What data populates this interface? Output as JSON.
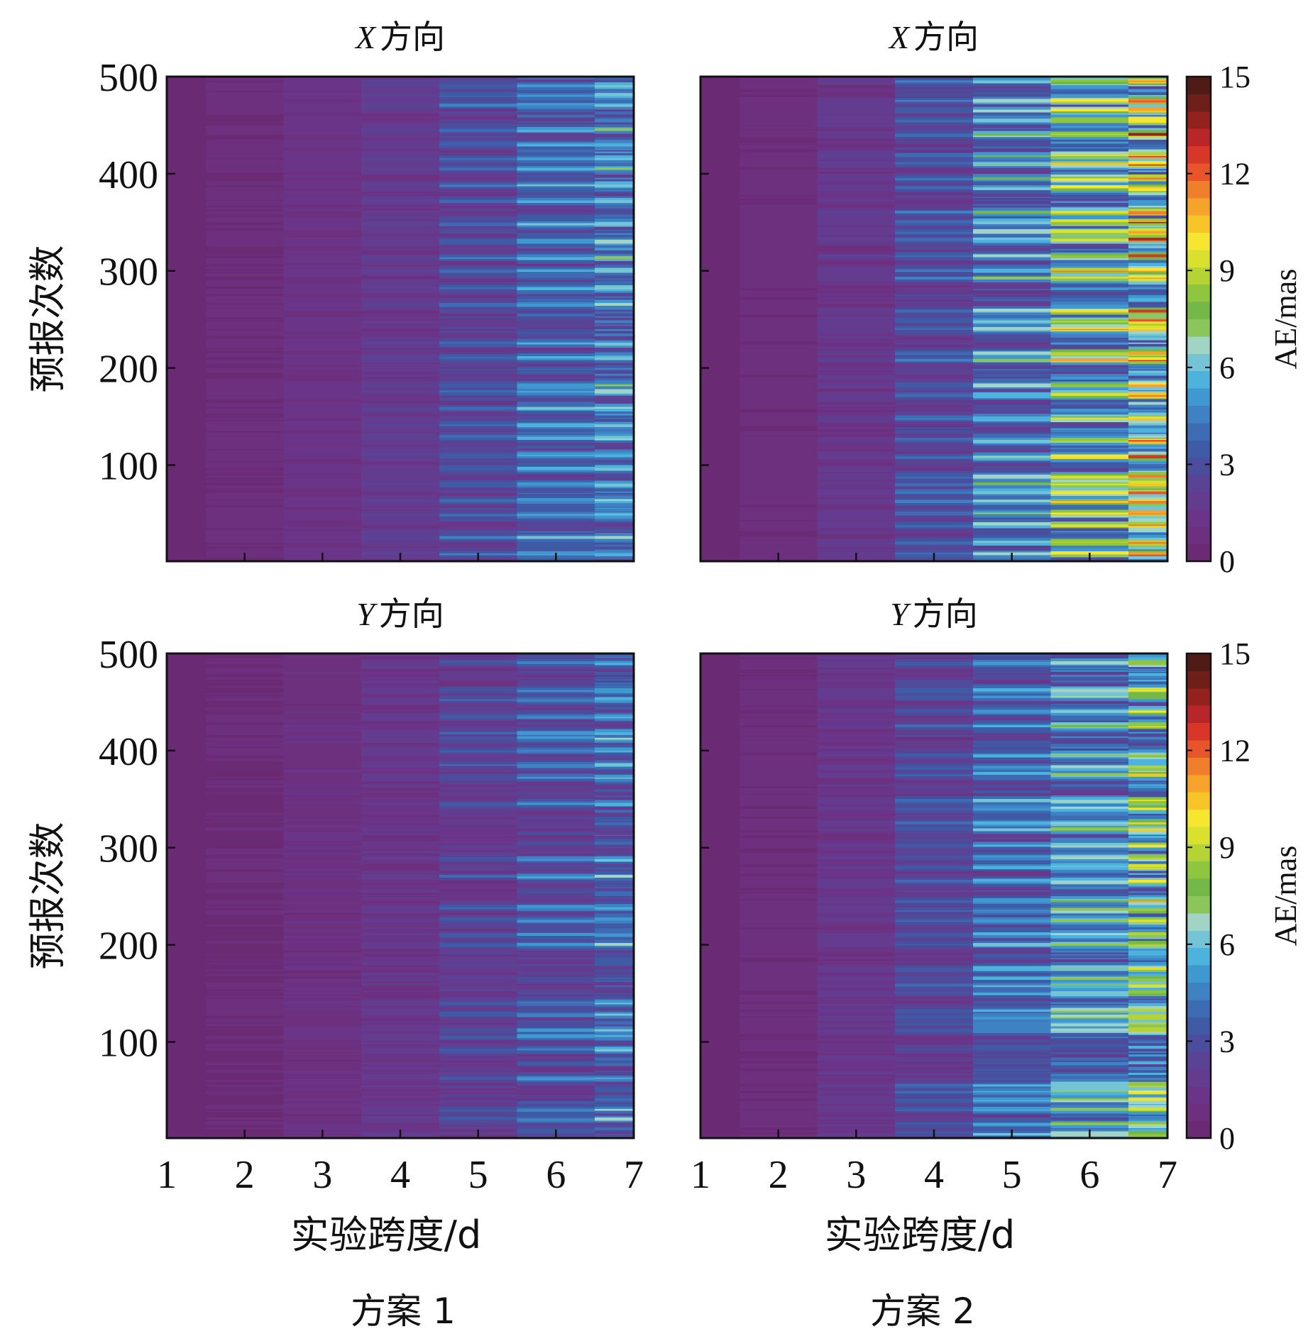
{
  "chart_data": {
    "type": "heatmap",
    "figure_labels": {
      "scheme1": "方案 1",
      "scheme2": "方案 2"
    },
    "colorbar": {
      "label": "AE/mas",
      "range": [
        0,
        15
      ],
      "ticks": [
        "0",
        "3",
        "6",
        "9",
        "12",
        "15"
      ],
      "colors": [
        "#6a2a74",
        "#6c307e",
        "#6a3488",
        "#633b8f",
        "#5a4395",
        "#4c4e9d",
        "#3f5ba6",
        "#3d6cb5",
        "#3f82c4",
        "#3f98d0",
        "#4db2dc",
        "#74c4d6",
        "#a2d4c6",
        "#8cc65a",
        "#74b84a",
        "#8ec63f",
        "#b5d334",
        "#d9e02e",
        "#f6e630",
        "#f7c528",
        "#f5a32a",
        "#ef7f2a",
        "#e8552a",
        "#d9362a",
        "#b8262a",
        "#93221f",
        "#6e1f1a",
        "#4e1b16"
      ]
    },
    "panels": [
      {
        "id": "x-scheme1",
        "title_var": "X",
        "title_text": "方向",
        "xlabel": "",
        "ylabel": "预报次数",
        "x": [
          "1",
          "2",
          "3",
          "4",
          "5",
          "6",
          "7"
        ],
        "xlim": [
          1,
          7
        ],
        "ylim": [
          1,
          500
        ],
        "yticks": [
          "100",
          "200",
          "300",
          "400",
          "500"
        ],
        "show_yticklabels": true,
        "show_xticklabels": false,
        "base_level": [
          0.2,
          0.6,
          1.1,
          1.5,
          2.1,
          2.8,
          3.4
        ],
        "streak_max": [
          0,
          0.5,
          1.5,
          2.5,
          4.5,
          6.0,
          7.0
        ],
        "streaks": [
          8,
          25,
          48,
          63,
          80,
          96,
          110,
          128,
          141,
          158,
          175,
          182,
          210,
          225,
          265,
          282,
          300,
          313,
          330,
          348,
          372,
          388,
          405,
          415,
          430,
          445,
          470,
          480,
          490
        ]
      },
      {
        "id": "x-scheme2",
        "title_var": "X",
        "title_text": "方向",
        "xlabel": "",
        "ylabel": "",
        "x": [
          "1",
          "2",
          "3",
          "4",
          "5",
          "6",
          "7"
        ],
        "xlim": [
          1,
          7
        ],
        "ylim": [
          1,
          500
        ],
        "yticks": [
          "100",
          "200",
          "300",
          "400",
          "500"
        ],
        "show_yticklabels": false,
        "show_xticklabels": false,
        "base_level": [
          0.2,
          0.7,
          1.3,
          2.0,
          2.9,
          3.8,
          4.8
        ],
        "streak_max": [
          0,
          0.6,
          2.2,
          4.5,
          7.5,
          11.0,
          13.0
        ],
        "streaks": [
          8,
          20,
          38,
          50,
          62,
          72,
          80,
          88,
          108,
          125,
          148,
          172,
          182,
          208,
          215,
          240,
          248,
          258,
          292,
          300,
          315,
          332,
          340,
          350,
          360,
          385,
          395,
          410,
          418,
          440,
          455,
          465,
          475,
          495
        ]
      },
      {
        "id": "y-scheme1",
        "title_var": "Y",
        "title_text": "方向",
        "xlabel": "实验跨度/d",
        "ylabel": "预报次数",
        "x": [
          "1",
          "2",
          "3",
          "4",
          "5",
          "6",
          "7"
        ],
        "xlim": [
          1,
          7
        ],
        "ylim": [
          1,
          500
        ],
        "yticks": [
          "100",
          "200",
          "300",
          "400",
          "500"
        ],
        "show_yticklabels": true,
        "show_xticklabels": true,
        "base_level": [
          0.2,
          0.5,
          0.9,
          1.3,
          1.7,
          2.3,
          2.8
        ],
        "streak_max": [
          0,
          0.3,
          1.0,
          2.0,
          4.0,
          5.5,
          6.5
        ],
        "streaks": [
          20,
          30,
          62,
          92,
          105,
          112,
          128,
          140,
          200,
          210,
          225,
          238,
          270,
          288,
          345,
          372,
          385,
          400,
          412,
          418,
          435,
          452,
          462,
          490
        ]
      },
      {
        "id": "y-scheme2",
        "title_var": "Y",
        "title_text": "方向",
        "xlabel": "实验跨度/d",
        "ylabel": "",
        "x": [
          "1",
          "2",
          "3",
          "4",
          "5",
          "6",
          "7"
        ],
        "xlim": [
          1,
          7
        ],
        "ylim": [
          1,
          500
        ],
        "yticks": [
          "100",
          "200",
          "300",
          "400",
          "500"
        ],
        "show_yticklabels": false,
        "show_xticklabels": true,
        "base_level": [
          0.2,
          0.6,
          1.2,
          1.9,
          2.6,
          3.3,
          4.0
        ],
        "streak_max": [
          0,
          0.5,
          2.0,
          4.0,
          6.0,
          8.0,
          10.5
        ],
        "streaks": [
          5,
          15,
          30,
          40,
          48,
          55,
          112,
          118,
          125,
          132,
          150,
          158,
          165,
          175,
          200,
          210,
          225,
          235,
          245,
          265,
          280,
          290,
          302,
          318,
          325,
          340,
          348,
          375,
          382,
          395,
          425,
          440,
          455,
          462,
          490
        ]
      }
    ]
  }
}
